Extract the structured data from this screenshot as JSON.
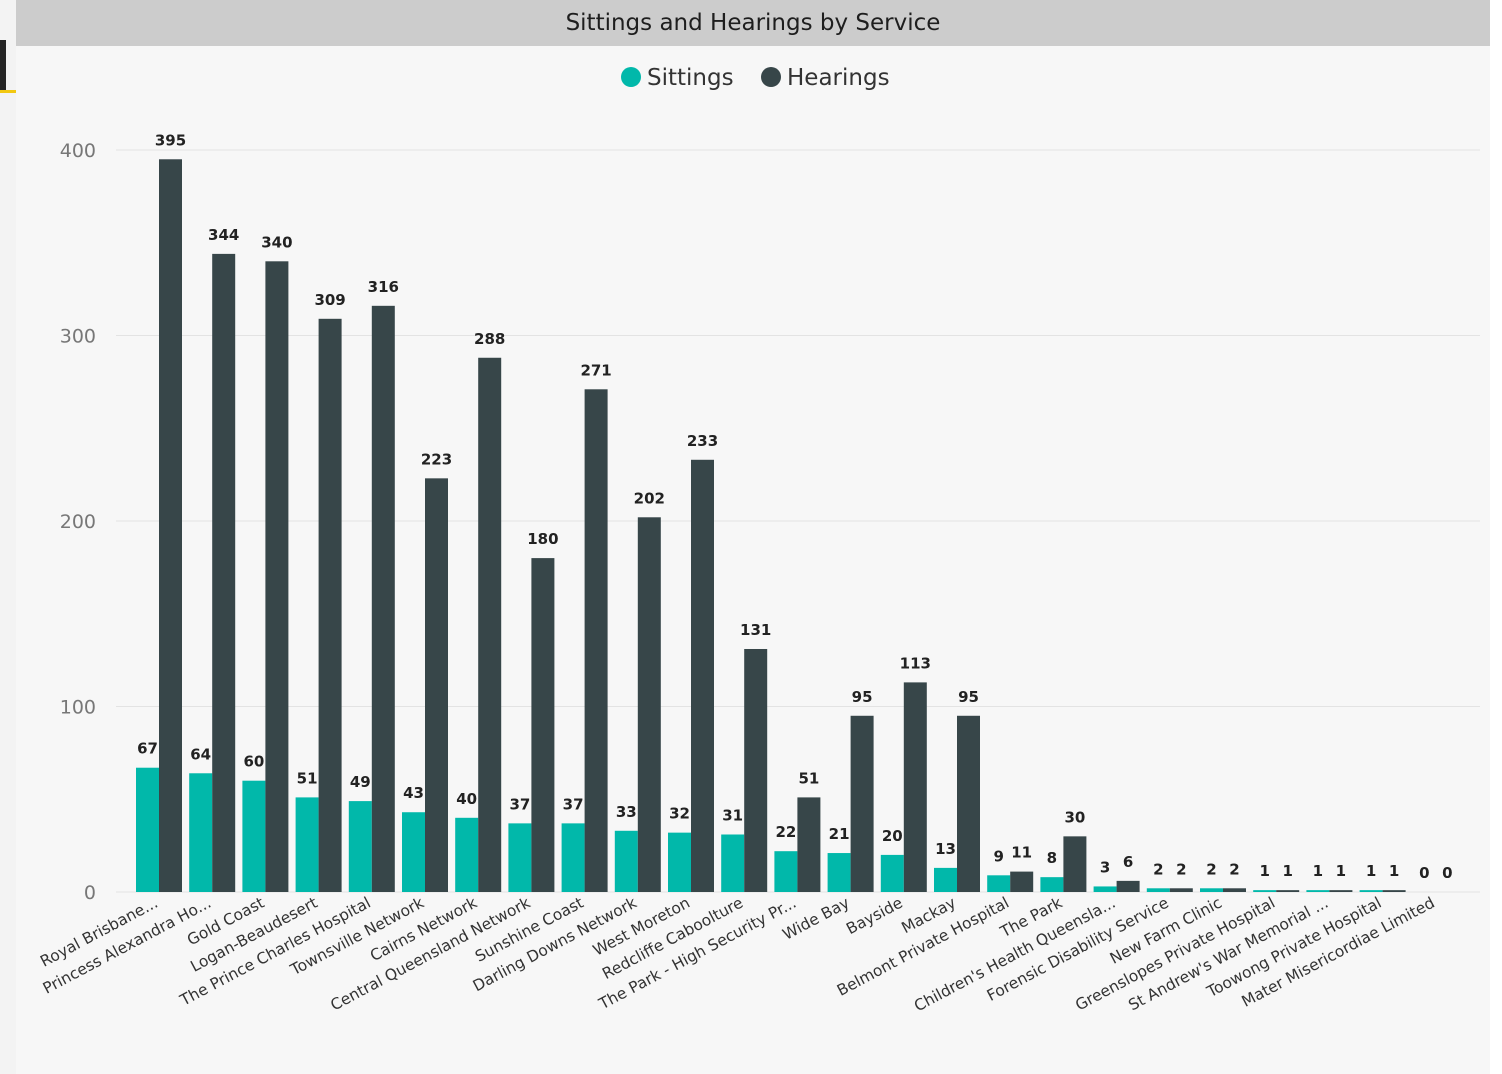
{
  "chart_data": {
    "type": "bar",
    "title": "Sittings and Hearings by Service",
    "categories": [
      "Royal Brisbane...",
      "Princess Alexandra Ho...",
      "Gold Coast",
      "Logan-Beaudesert",
      "The Prince Charles Hospital",
      "Townsville Network",
      "Cairns Network",
      "Central Queensland Network",
      "Sunshine Coast",
      "Darling Downs Network",
      "West Moreton",
      "Redcliffe Caboolture",
      "The Park - High Security Pr...",
      "Wide Bay",
      "Bayside",
      "Mackay",
      "Belmont Private Hospital",
      "The Park",
      "Children's Health Queensla...",
      "Forensic Disability Service",
      "New Farm Clinic",
      "Greenslopes Private Hospital",
      "St Andrew's War Memorial ...",
      "Toowong Private Hospital",
      "Mater Misericordiae Limited"
    ],
    "series": [
      {
        "name": "Sittings",
        "color": "#01b8aa",
        "values": [
          67,
          64,
          60,
          51,
          49,
          43,
          40,
          37,
          37,
          33,
          32,
          31,
          22,
          21,
          20,
          13,
          9,
          8,
          3,
          2,
          2,
          1,
          1,
          1,
          0
        ]
      },
      {
        "name": "Hearings",
        "color": "#374649",
        "values": [
          395,
          344,
          340,
          309,
          316,
          223,
          288,
          180,
          271,
          202,
          233,
          131,
          51,
          95,
          113,
          95,
          11,
          30,
          6,
          2,
          2,
          1,
          1,
          1,
          0
        ]
      }
    ],
    "yticks": [
      0,
      100,
      200,
      300,
      400
    ],
    "ylim": [
      0,
      400
    ],
    "xlabel": "",
    "ylabel": "",
    "legend": "top-center",
    "grid": true
  }
}
